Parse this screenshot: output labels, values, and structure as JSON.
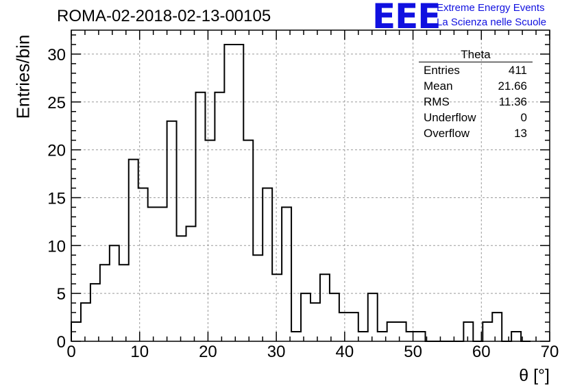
{
  "title": "ROMA-02-2018-02-13-00105",
  "logo": {
    "mark": "EEE",
    "line1": "Extreme Energy Events",
    "line2": "La Scienza nelle Scuole",
    "color": "#1010e0"
  },
  "stats": {
    "name": "Theta",
    "rows": [
      {
        "label": "Entries",
        "value": "411"
      },
      {
        "label": "Mean",
        "value": "21.66"
      },
      {
        "label": "RMS",
        "value": "11.36"
      },
      {
        "label": "Underflow",
        "value": "0"
      },
      {
        "label": "Overflow",
        "value": "13"
      }
    ]
  },
  "chart_data": {
    "type": "bar",
    "style": "step-histogram",
    "xlabel": "θ [°]",
    "ylabel": "Entries/bin",
    "xlim": [
      0,
      70
    ],
    "ylim": [
      0,
      32.5
    ],
    "bin_width": 1.4,
    "bin_start": 0,
    "xticks": [
      0,
      10,
      20,
      30,
      40,
      50,
      60,
      70
    ],
    "yticks": [
      0,
      5,
      10,
      15,
      20,
      25,
      30
    ],
    "grid": true,
    "values": [
      2,
      4,
      6,
      8,
      10,
      8,
      19,
      16,
      14,
      14,
      23,
      11,
      12,
      26,
      21,
      26,
      31,
      31,
      21,
      9,
      16,
      7,
      14,
      1,
      5,
      4,
      7,
      5,
      3,
      3,
      1,
      5,
      1,
      2,
      2,
      1,
      1,
      0,
      0,
      0,
      0,
      2,
      0,
      2,
      3,
      0,
      1,
      0
    ]
  }
}
